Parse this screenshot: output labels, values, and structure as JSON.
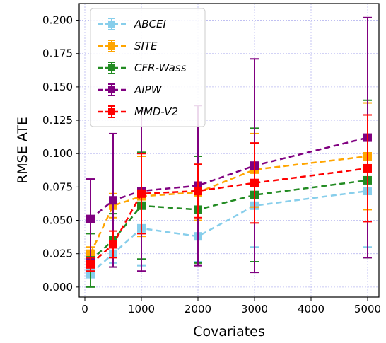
{
  "chart_data": {
    "type": "line",
    "xlabel": "Covariates",
    "ylabel": "RMSE ATE",
    "xlim": [
      -100,
      5200
    ],
    "ylim": [
      -0.0075,
      0.2125
    ],
    "xticks": [
      0,
      1000,
      2000,
      3000,
      4000,
      5000
    ],
    "yticks": [
      0.0,
      0.025,
      0.05,
      0.075,
      0.1,
      0.125,
      0.15,
      0.175,
      0.2
    ],
    "xtick_labels": [
      "0",
      "1000",
      "2000",
      "3000",
      "4000",
      "5000"
    ],
    "ytick_labels": [
      "0.000",
      "0.025",
      "0.050",
      "0.075",
      "0.100",
      "0.125",
      "0.150",
      "0.175",
      "0.200"
    ],
    "grid": true,
    "legend_position": "top-left",
    "x": [
      100,
      500,
      1000,
      2000,
      3000,
      5000
    ],
    "series": [
      {
        "name": "ABCEI",
        "color": "#87ceeb",
        "values": [
          0.01,
          0.025,
          0.044,
          0.038,
          0.061,
          0.072
        ],
        "lower": [
          0.007,
          0.018,
          0.016,
          0.019,
          0.03,
          0.03
        ],
        "upper": [
          0.014,
          0.033,
          0.072,
          0.058,
          0.091,
          0.113
        ]
      },
      {
        "name": "SITE",
        "color": "#ffa500",
        "values": [
          0.025,
          0.061,
          0.068,
          0.071,
          0.088,
          0.098
        ],
        "lower": [
          0.02,
          0.052,
          0.038,
          0.05,
          0.06,
          0.058
        ],
        "upper": [
          0.03,
          0.07,
          0.098,
          0.092,
          0.115,
          0.138
        ]
      },
      {
        "name": "CFR-Wass",
        "color": "#228b22",
        "values": [
          0.02,
          0.035,
          0.061,
          0.058,
          0.069,
          0.08
        ],
        "lower": [
          0.0,
          0.015,
          0.021,
          0.018,
          0.019,
          0.022
        ],
        "upper": [
          0.04,
          0.055,
          0.101,
          0.098,
          0.119,
          0.14
        ]
      },
      {
        "name": "AIPW",
        "color": "#800080",
        "values": [
          0.051,
          0.065,
          0.072,
          0.076,
          0.091,
          0.112
        ],
        "lower": [
          0.021,
          0.015,
          0.012,
          0.016,
          0.011,
          0.022
        ],
        "upper": [
          0.081,
          0.115,
          0.132,
          0.136,
          0.171,
          0.202
        ]
      },
      {
        "name": "MMD-V2",
        "color": "#ff0000",
        "values": [
          0.017,
          0.032,
          0.07,
          0.072,
          0.078,
          0.089
        ],
        "lower": [
          0.012,
          0.022,
          0.04,
          0.052,
          0.048,
          0.049
        ],
        "upper": [
          0.022,
          0.042,
          0.1,
          0.092,
          0.108,
          0.129
        ]
      }
    ]
  }
}
